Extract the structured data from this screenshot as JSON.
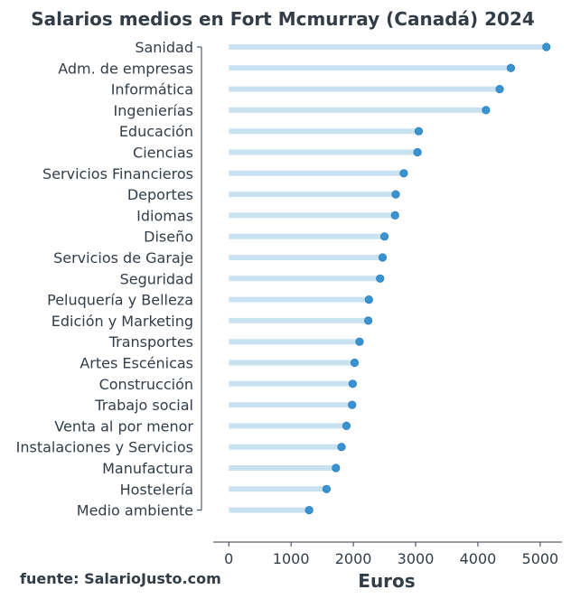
{
  "chart_data": {
    "type": "lollipop",
    "title": "Salarios medios en Fort Mcmurray (Canadá) 2024",
    "xlabel": "Euros",
    "ylabel": "",
    "source": "fuente: SalarioJusto.com",
    "xlim": [
      -250,
      5350
    ],
    "xticks": [
      0,
      1000,
      2000,
      3000,
      4000,
      5000
    ],
    "grid": false,
    "legend": "none",
    "colors": {
      "stem": "#c9e2f1",
      "dot": "#3a93d0",
      "text": "#333d47",
      "axis": "#333d47"
    },
    "categories": [
      "Sanidad",
      "Adm. de empresas",
      "Informática",
      "Ingenierías",
      "Educación",
      "Ciencias",
      "Servicios Financieros",
      "Deportes",
      "Idiomas",
      "Diseño",
      "Servicios de Garaje",
      "Seguridad",
      "Peluquería y Belleza",
      "Edición y Marketing",
      "Transportes",
      "Artes Escénicas",
      "Construcción",
      "Trabajo social",
      "Venta al por menor",
      "Instalaciones y Servicios",
      "Manufactura",
      "Hostelería",
      "Medio ambiente"
    ],
    "values": [
      5100,
      4530,
      4350,
      4130,
      3050,
      3030,
      2810,
      2680,
      2670,
      2500,
      2470,
      2430,
      2250,
      2240,
      2100,
      2020,
      1990,
      1980,
      1890,
      1810,
      1720,
      1570,
      1290
    ]
  }
}
